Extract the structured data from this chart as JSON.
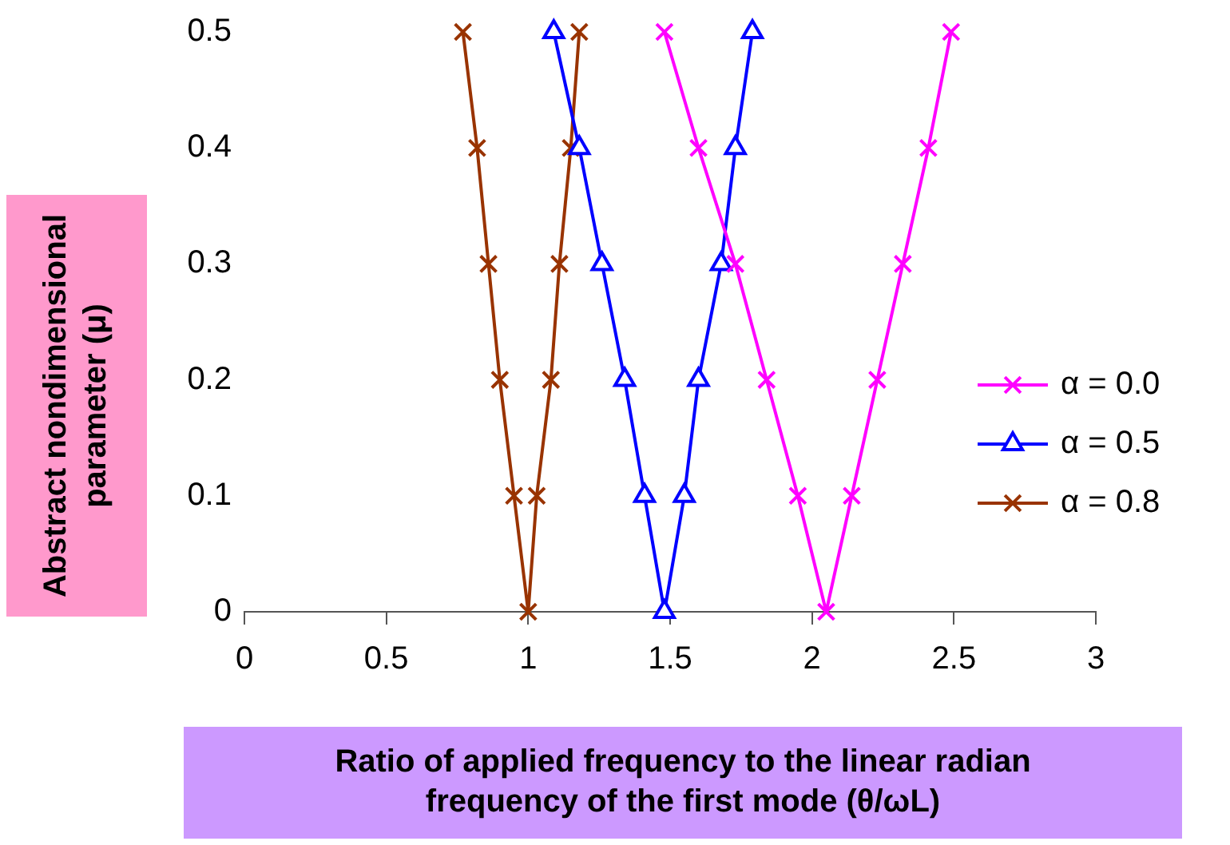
{
  "chart_data": {
    "type": "line",
    "xlabel": "Ratio of applied frequency to the linear radian frequency of the first mode (θ/ωL)",
    "ylabel": "Abstract nondimensional parameter (μ)",
    "xlim": [
      0,
      3
    ],
    "xticks": [
      0,
      0.5,
      1,
      1.5,
      2,
      2.5,
      3
    ],
    "ylim": [
      0,
      0.5
    ],
    "yticks": [
      0,
      0.1,
      0.2,
      0.3,
      0.4,
      0.5
    ],
    "grid": false,
    "legend": "right",
    "series": [
      {
        "name": "α = 0.0",
        "color": "#ff00ff",
        "marker": "cross",
        "x": [
          1.48,
          1.6,
          1.73,
          1.84,
          1.95,
          2.05,
          2.14,
          2.23,
          2.32,
          2.41,
          2.49
        ],
        "values": [
          0.5,
          0.4,
          0.3,
          0.2,
          0.1,
          0,
          0.1,
          0.2,
          0.3,
          0.4,
          0.5
        ]
      },
      {
        "name": "α = 0.5",
        "color": "#0000ff",
        "marker": "triangle",
        "x": [
          1.09,
          1.18,
          1.26,
          1.34,
          1.41,
          1.48,
          1.55,
          1.6,
          1.68,
          1.73,
          1.79
        ],
        "values": [
          0.5,
          0.4,
          0.3,
          0.2,
          0.1,
          0,
          0.1,
          0.2,
          0.3,
          0.4,
          0.5
        ]
      },
      {
        "name": "α = 0.8",
        "color": "#993300",
        "marker": "cross",
        "x": [
          0.77,
          0.82,
          0.86,
          0.9,
          0.95,
          1.0,
          1.03,
          1.08,
          1.11,
          1.15,
          1.18
        ],
        "values": [
          0.5,
          0.4,
          0.3,
          0.2,
          0.1,
          0,
          0.1,
          0.2,
          0.3,
          0.4,
          0.5
        ]
      }
    ]
  }
}
